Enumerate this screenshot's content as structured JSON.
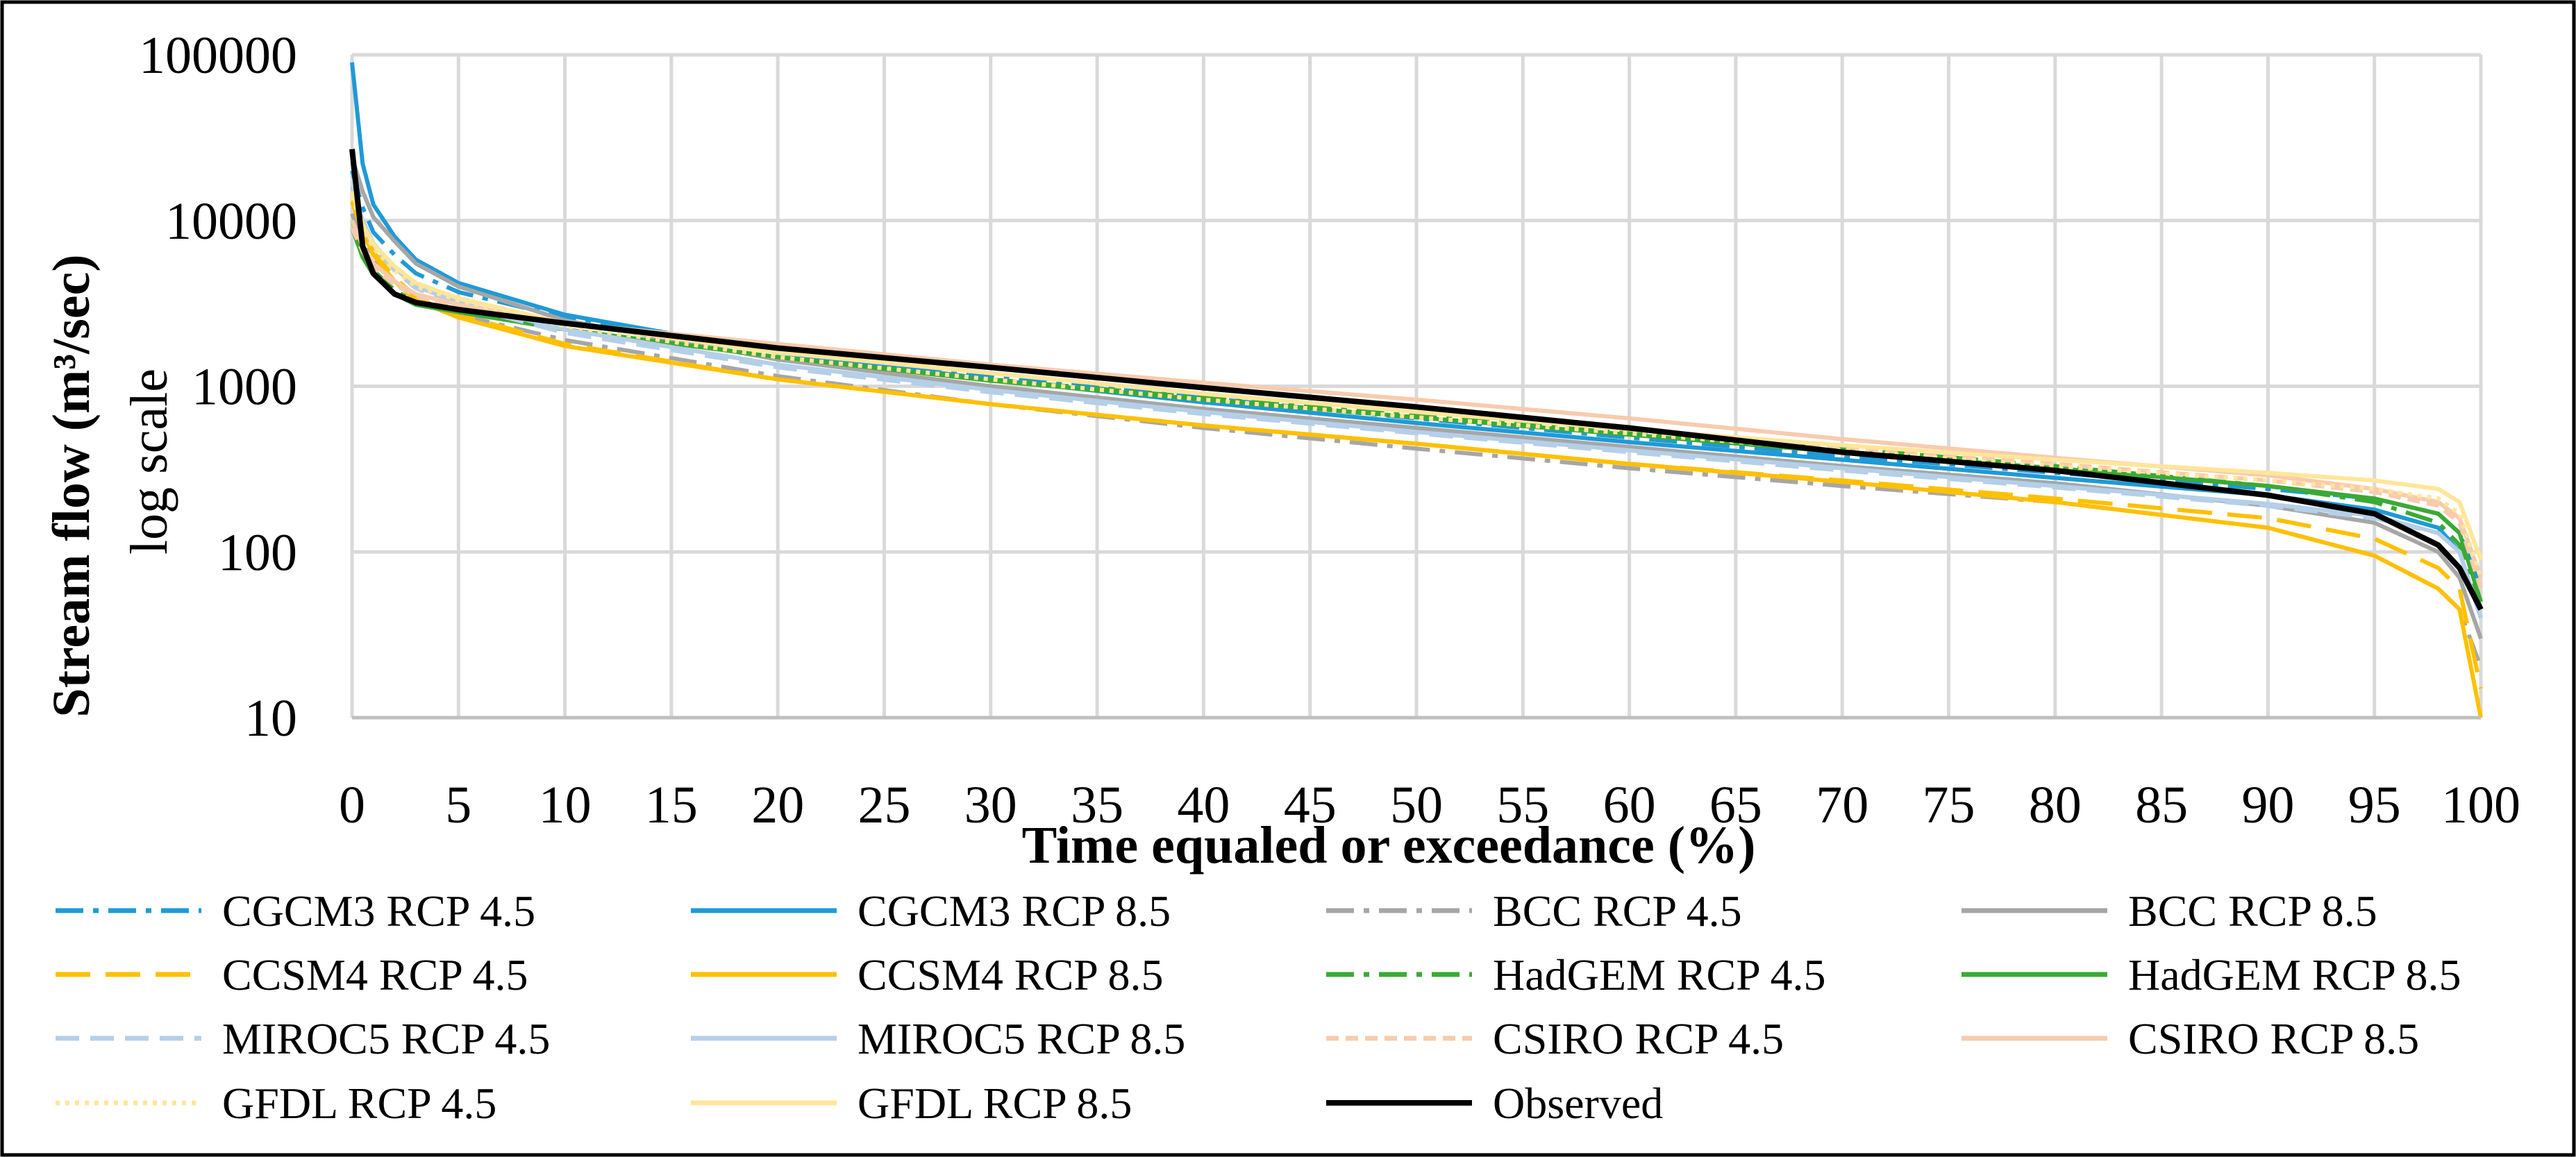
{
  "chart_data": {
    "type": "line",
    "xlabel": "Time equaled or exceedance (%)",
    "ylabel_bold": "Stream flow (m³/sec)",
    "ylabel_note": "log scale",
    "y_scale": "log",
    "xlim": [
      0,
      100
    ],
    "ylim": [
      10,
      100000
    ],
    "grid": true,
    "legend_position": "bottom",
    "x_ticks": [
      "0",
      "5",
      "10",
      "15",
      "20",
      "25",
      "30",
      "35",
      "40",
      "45",
      "50",
      "55",
      "60",
      "65",
      "70",
      "75",
      "80",
      "85",
      "90",
      "95",
      "100"
    ],
    "y_ticks": [
      "10",
      "100",
      "1000",
      "10000",
      "100000"
    ],
    "x": [
      0,
      0.5,
      1,
      2,
      3,
      5,
      10,
      20,
      30,
      40,
      50,
      60,
      70,
      80,
      90,
      95,
      98,
      99,
      100
    ],
    "series": [
      {
        "name": "CGCM3  RCP 4.5",
        "color": "#1f9ad6",
        "dash": "dashdot",
        "values": [
          20000,
          12000,
          8500,
          6200,
          4800,
          3700,
          2600,
          1650,
          1150,
          850,
          640,
          490,
          380,
          300,
          240,
          210,
          170,
          130,
          60
        ]
      },
      {
        "name": "CGCM3  RCP 8.5",
        "color": "#1f9ad6",
        "dash": "solid",
        "values": [
          90000,
          22000,
          12500,
          8000,
          5800,
          4200,
          2700,
          1600,
          1100,
          800,
          600,
          460,
          360,
          280,
          220,
          180,
          140,
          100,
          40
        ]
      },
      {
        "name": "BCC RCP 4.5",
        "color": "#a6a6a6",
        "dash": "dashdot",
        "values": [
          11000,
          7500,
          5800,
          4200,
          3400,
          2700,
          1900,
          1150,
          780,
          560,
          420,
          320,
          250,
          200,
          140,
          95,
          60,
          45,
          20
        ]
      },
      {
        "name": "BCC RCP 8.5",
        "color": "#a6a6a6",
        "dash": "solid",
        "values": [
          24000,
          15000,
          10500,
          7500,
          5500,
          4000,
          2500,
          1450,
          1000,
          730,
          560,
          430,
          330,
          260,
          190,
          150,
          100,
          70,
          30
        ]
      },
      {
        "name": "CCSM4 RCP 4.5",
        "color": "#ffc000",
        "dash": "longdash",
        "values": [
          14000,
          9000,
          6500,
          4500,
          3500,
          2700,
          1800,
          1100,
          780,
          580,
          450,
          340,
          270,
          210,
          160,
          120,
          80,
          60,
          15
        ]
      },
      {
        "name": "CCSM4 RCP 8.5",
        "color": "#ffc000",
        "dash": "solid",
        "values": [
          13000,
          8500,
          6200,
          4300,
          3300,
          2600,
          1750,
          1100,
          780,
          580,
          450,
          340,
          265,
          200,
          140,
          95,
          60,
          45,
          10
        ]
      },
      {
        "name": "HadGEM RCP 4.5",
        "color": "#3aaa35",
        "dash": "dashdot",
        "values": [
          10000,
          6500,
          5000,
          3800,
          3200,
          2800,
          2200,
          1500,
          1100,
          850,
          680,
          540,
          420,
          330,
          250,
          200,
          150,
          110,
          45
        ]
      },
      {
        "name": "HadGEM RCP 8.5",
        "color": "#3aaa35",
        "dash": "solid",
        "values": [
          9000,
          6000,
          4700,
          3600,
          3100,
          2800,
          2200,
          1500,
          1080,
          830,
          650,
          510,
          400,
          320,
          250,
          210,
          170,
          130,
          50
        ]
      },
      {
        "name": "MIROC5 RCP 4.5",
        "color": "#b4cfe8",
        "dash": "dash",
        "values": [
          15000,
          9500,
          7000,
          5000,
          3900,
          3100,
          2100,
          1300,
          920,
          680,
          520,
          400,
          310,
          245,
          190,
          160,
          130,
          100,
          40
        ]
      },
      {
        "name": "MIROC5 RCP 8.5",
        "color": "#b4cfe8",
        "dash": "solid",
        "values": [
          16000,
          10000,
          7300,
          5200,
          4000,
          3200,
          2200,
          1350,
          950,
          700,
          530,
          410,
          320,
          250,
          195,
          165,
          130,
          100,
          40
        ]
      },
      {
        "name": "CSIRO RCP 4.5",
        "color": "#f8cbad",
        "dash": "shortdash",
        "values": [
          9000,
          6500,
          5200,
          4100,
          3500,
          3000,
          2400,
          1650,
          1200,
          900,
          700,
          550,
          430,
          340,
          270,
          230,
          190,
          150,
          60
        ]
      },
      {
        "name": "CSIRO RCP 8.5",
        "color": "#f8cbad",
        "dash": "solid",
        "values": [
          10000,
          7000,
          5500,
          4300,
          3600,
          3100,
          2400,
          1800,
          1350,
          1050,
          830,
          640,
          480,
          370,
          290,
          240,
          200,
          160,
          70
        ]
      },
      {
        "name": "GFDL RCP 4.5",
        "color": "#ffe699",
        "dash": "dot",
        "values": [
          14000,
          9000,
          6800,
          5000,
          4000,
          3300,
          2300,
          1500,
          1100,
          830,
          650,
          520,
          410,
          330,
          270,
          240,
          210,
          170,
          70
        ]
      },
      {
        "name": "GFDL RCP 8.5",
        "color": "#ffe699",
        "dash": "solid",
        "values": [
          15000,
          9500,
          7200,
          5300,
          4200,
          3400,
          2400,
          1600,
          1200,
          900,
          700,
          550,
          440,
          360,
          300,
          270,
          240,
          200,
          90
        ]
      },
      {
        "name": "Observed",
        "color": "#000000",
        "dash": "solid",
        "values": [
          27000,
          7000,
          4800,
          3600,
          3200,
          2900,
          2400,
          1700,
          1300,
          980,
          750,
          560,
          400,
          310,
          220,
          170,
          110,
          80,
          45
        ]
      }
    ]
  }
}
